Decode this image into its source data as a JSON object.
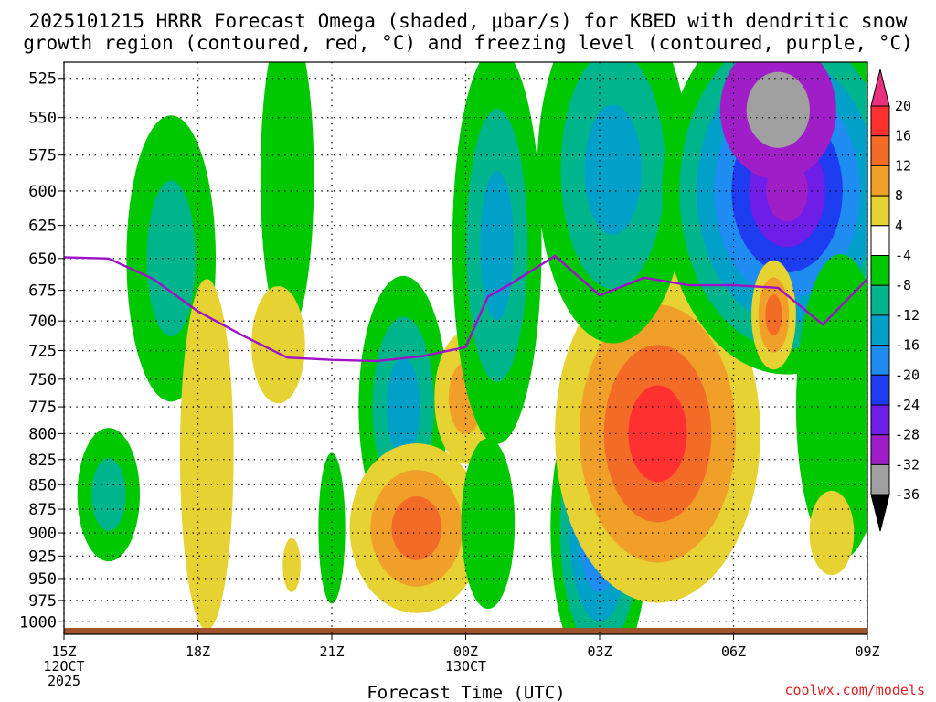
{
  "chart_data": {
    "type": "contour",
    "title": [
      "2025101215 HRRR Forecast Omega (shaded, μbar/s) for KBED with dendritic snow",
      "growth region (contoured, red, °C) and freezing level (contoured, purple, °C)"
    ],
    "xlabel": "Forecast Time (UTC)",
    "credit": "coolwx.com/models",
    "x_ticks": [
      {
        "h": 0,
        "label": "15Z",
        "sub": [
          "12OCT",
          "2025"
        ]
      },
      {
        "h": 3,
        "label": "18Z",
        "sub": []
      },
      {
        "h": 6,
        "label": "21Z",
        "sub": []
      },
      {
        "h": 9,
        "label": "00Z",
        "sub": [
          "13OCT"
        ]
      },
      {
        "h": 12,
        "label": "03Z",
        "sub": []
      },
      {
        "h": 15,
        "label": "06Z",
        "sub": []
      },
      {
        "h": 18,
        "label": "09Z",
        "sub": []
      }
    ],
    "xlim": [
      0,
      18
    ],
    "ylim": [
      1015,
      515
    ],
    "y_ticks": [
      525,
      550,
      575,
      600,
      625,
      650,
      675,
      700,
      725,
      750,
      775,
      800,
      825,
      850,
      875,
      900,
      925,
      950,
      975,
      1000
    ],
    "grid": true,
    "colorbar": {
      "labels": [
        "20",
        "16",
        "12",
        "8",
        "4",
        "-4",
        "-8",
        "-12",
        "-16",
        "-20",
        "-24",
        "-28",
        "-32",
        "-36"
      ],
      "colors": [
        "#e8307e",
        "#ff3030",
        "#f26c28",
        "#f0a028",
        "#e6d232",
        "#ffffff",
        "#00c800",
        "#00b48c",
        "#00a0c8",
        "#1e8cf0",
        "#1e3cf0",
        "#6e1ee6",
        "#a01ec8",
        "#a0a0a0",
        "#000000"
      ]
    },
    "freezing_level": {
      "h": [
        0,
        1,
        2,
        3,
        4,
        5,
        6,
        7,
        8,
        9,
        9.5,
        10,
        11,
        12,
        13,
        14,
        15,
        16,
        17,
        18
      ],
      "hpa": [
        649,
        650,
        666,
        692,
        712,
        731,
        733,
        734,
        730,
        722,
        680,
        670,
        648,
        679,
        665,
        671,
        671,
        673,
        703,
        666
      ]
    },
    "shading": [
      {
        "h": 1.0,
        "p": 860,
        "rh": 0.7,
        "rp": 68,
        "levels": [
          -4,
          -8
        ]
      },
      {
        "h": 2.4,
        "p": 650,
        "rh": 1.0,
        "rp": 110,
        "levels": [
          -4,
          -8
        ]
      },
      {
        "h": 5.0,
        "p": 590,
        "rh": 0.6,
        "rp": 110,
        "levels": [
          -4
        ]
      },
      {
        "h": 4.8,
        "p": 720,
        "rh": 0.6,
        "rp": 50,
        "levels": [
          4
        ]
      },
      {
        "h": 3.2,
        "p": 820,
        "rh": 0.6,
        "rp": 170,
        "levels": [
          4
        ]
      },
      {
        "h": 5.1,
        "p": 935,
        "rh": 0.2,
        "rp": 30,
        "levels": [
          4
        ]
      },
      {
        "h": 6.0,
        "p": 895,
        "rh": 0.3,
        "rp": 80,
        "levels": [
          -4
        ]
      },
      {
        "h": 7.6,
        "p": 775,
        "rh": 1.0,
        "rp": 120,
        "levels": [
          -4,
          -8,
          -12
        ]
      },
      {
        "h": 7.9,
        "p": 895,
        "rh": 1.5,
        "rp": 90,
        "levels": [
          4,
          8,
          12
        ]
      },
      {
        "h": 9.0,
        "p": 767,
        "rh": 0.7,
        "rp": 60,
        "levels": [
          4,
          8
        ]
      },
      {
        "h": 9.7,
        "p": 640,
        "rh": 1.0,
        "rp": 150,
        "levels": [
          -4,
          -8,
          -12
        ]
      },
      {
        "h": 9.5,
        "p": 890,
        "rh": 0.6,
        "rp": 90,
        "levels": [
          -4
        ]
      },
      {
        "h": 11.2,
        "p": 595,
        "rh": 0.3,
        "rp": 60,
        "levels": [
          4
        ]
      },
      {
        "h": 12.0,
        "p": 895,
        "rh": 1.1,
        "rp": 160,
        "levels": [
          -4,
          -8,
          -12,
          -16,
          -24
        ]
      },
      {
        "h": 13.3,
        "p": 800,
        "rh": 2.3,
        "rp": 160,
        "levels": [
          4,
          8,
          12,
          16
        ]
      },
      {
        "h": 12.3,
        "p": 585,
        "rh": 1.7,
        "rp": 120,
        "levels": [
          -4,
          -8,
          -12
        ]
      },
      {
        "h": 16.2,
        "p": 600,
        "rh": 2.8,
        "rp": 130,
        "levels": [
          -4,
          -8,
          -12,
          -16,
          -20,
          -24,
          -28
        ]
      },
      {
        "h": 16.0,
        "p": 545,
        "rh": 1.3,
        "rp": 45,
        "levels": [
          -28,
          -32
        ]
      },
      {
        "h": 17.4,
        "p": 775,
        "rh": 1.0,
        "rp": 140,
        "levels": [
          -4
        ]
      },
      {
        "h": 15.9,
        "p": 695,
        "rh": 0.5,
        "rp": 45,
        "levels": [
          4,
          8,
          12
        ]
      },
      {
        "h": 17.2,
        "p": 900,
        "rh": 0.5,
        "rp": 45,
        "levels": [
          4
        ]
      }
    ]
  }
}
